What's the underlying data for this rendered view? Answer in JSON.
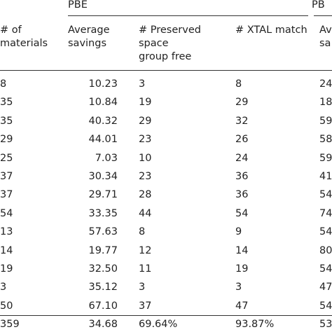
{
  "table": {
    "group_headers": [
      "PBE",
      "PB"
    ],
    "column_headers": [
      [
        "# of",
        "materials"
      ],
      [
        "Average",
        "savings"
      ],
      [
        "# Preserved",
        "space",
        "group free"
      ],
      [
        "# XTAL match"
      ],
      [
        "Av",
        "sa"
      ]
    ],
    "rows": [
      [
        "8",
        "10.23",
        "3",
        "8",
        "24"
      ],
      [
        "35",
        "10.84",
        "19",
        "29",
        "18"
      ],
      [
        "35",
        "40.32",
        "29",
        "32",
        "59"
      ],
      [
        "29",
        "44.01",
        "23",
        "26",
        "58"
      ],
      [
        "25",
        "7.03",
        "10",
        "24",
        "59"
      ],
      [
        "37",
        "30.34",
        "23",
        "36",
        "41"
      ],
      [
        "37",
        "29.71",
        "28",
        "36",
        "54"
      ],
      [
        "54",
        "33.35",
        "44",
        "54",
        "74"
      ],
      [
        "13",
        "57.63",
        "8",
        "9",
        "54"
      ],
      [
        "14",
        "19.77",
        "12",
        "14",
        "80"
      ],
      [
        "19",
        "32.50",
        "11",
        "19",
        "54"
      ],
      [
        "3",
        "35.12",
        "3",
        "3",
        "47"
      ],
      [
        "50",
        "67.10",
        "37",
        "47",
        "54"
      ],
      [
        "359",
        "34.68",
        "69.64%",
        "93.87%",
        "53"
      ]
    ]
  }
}
